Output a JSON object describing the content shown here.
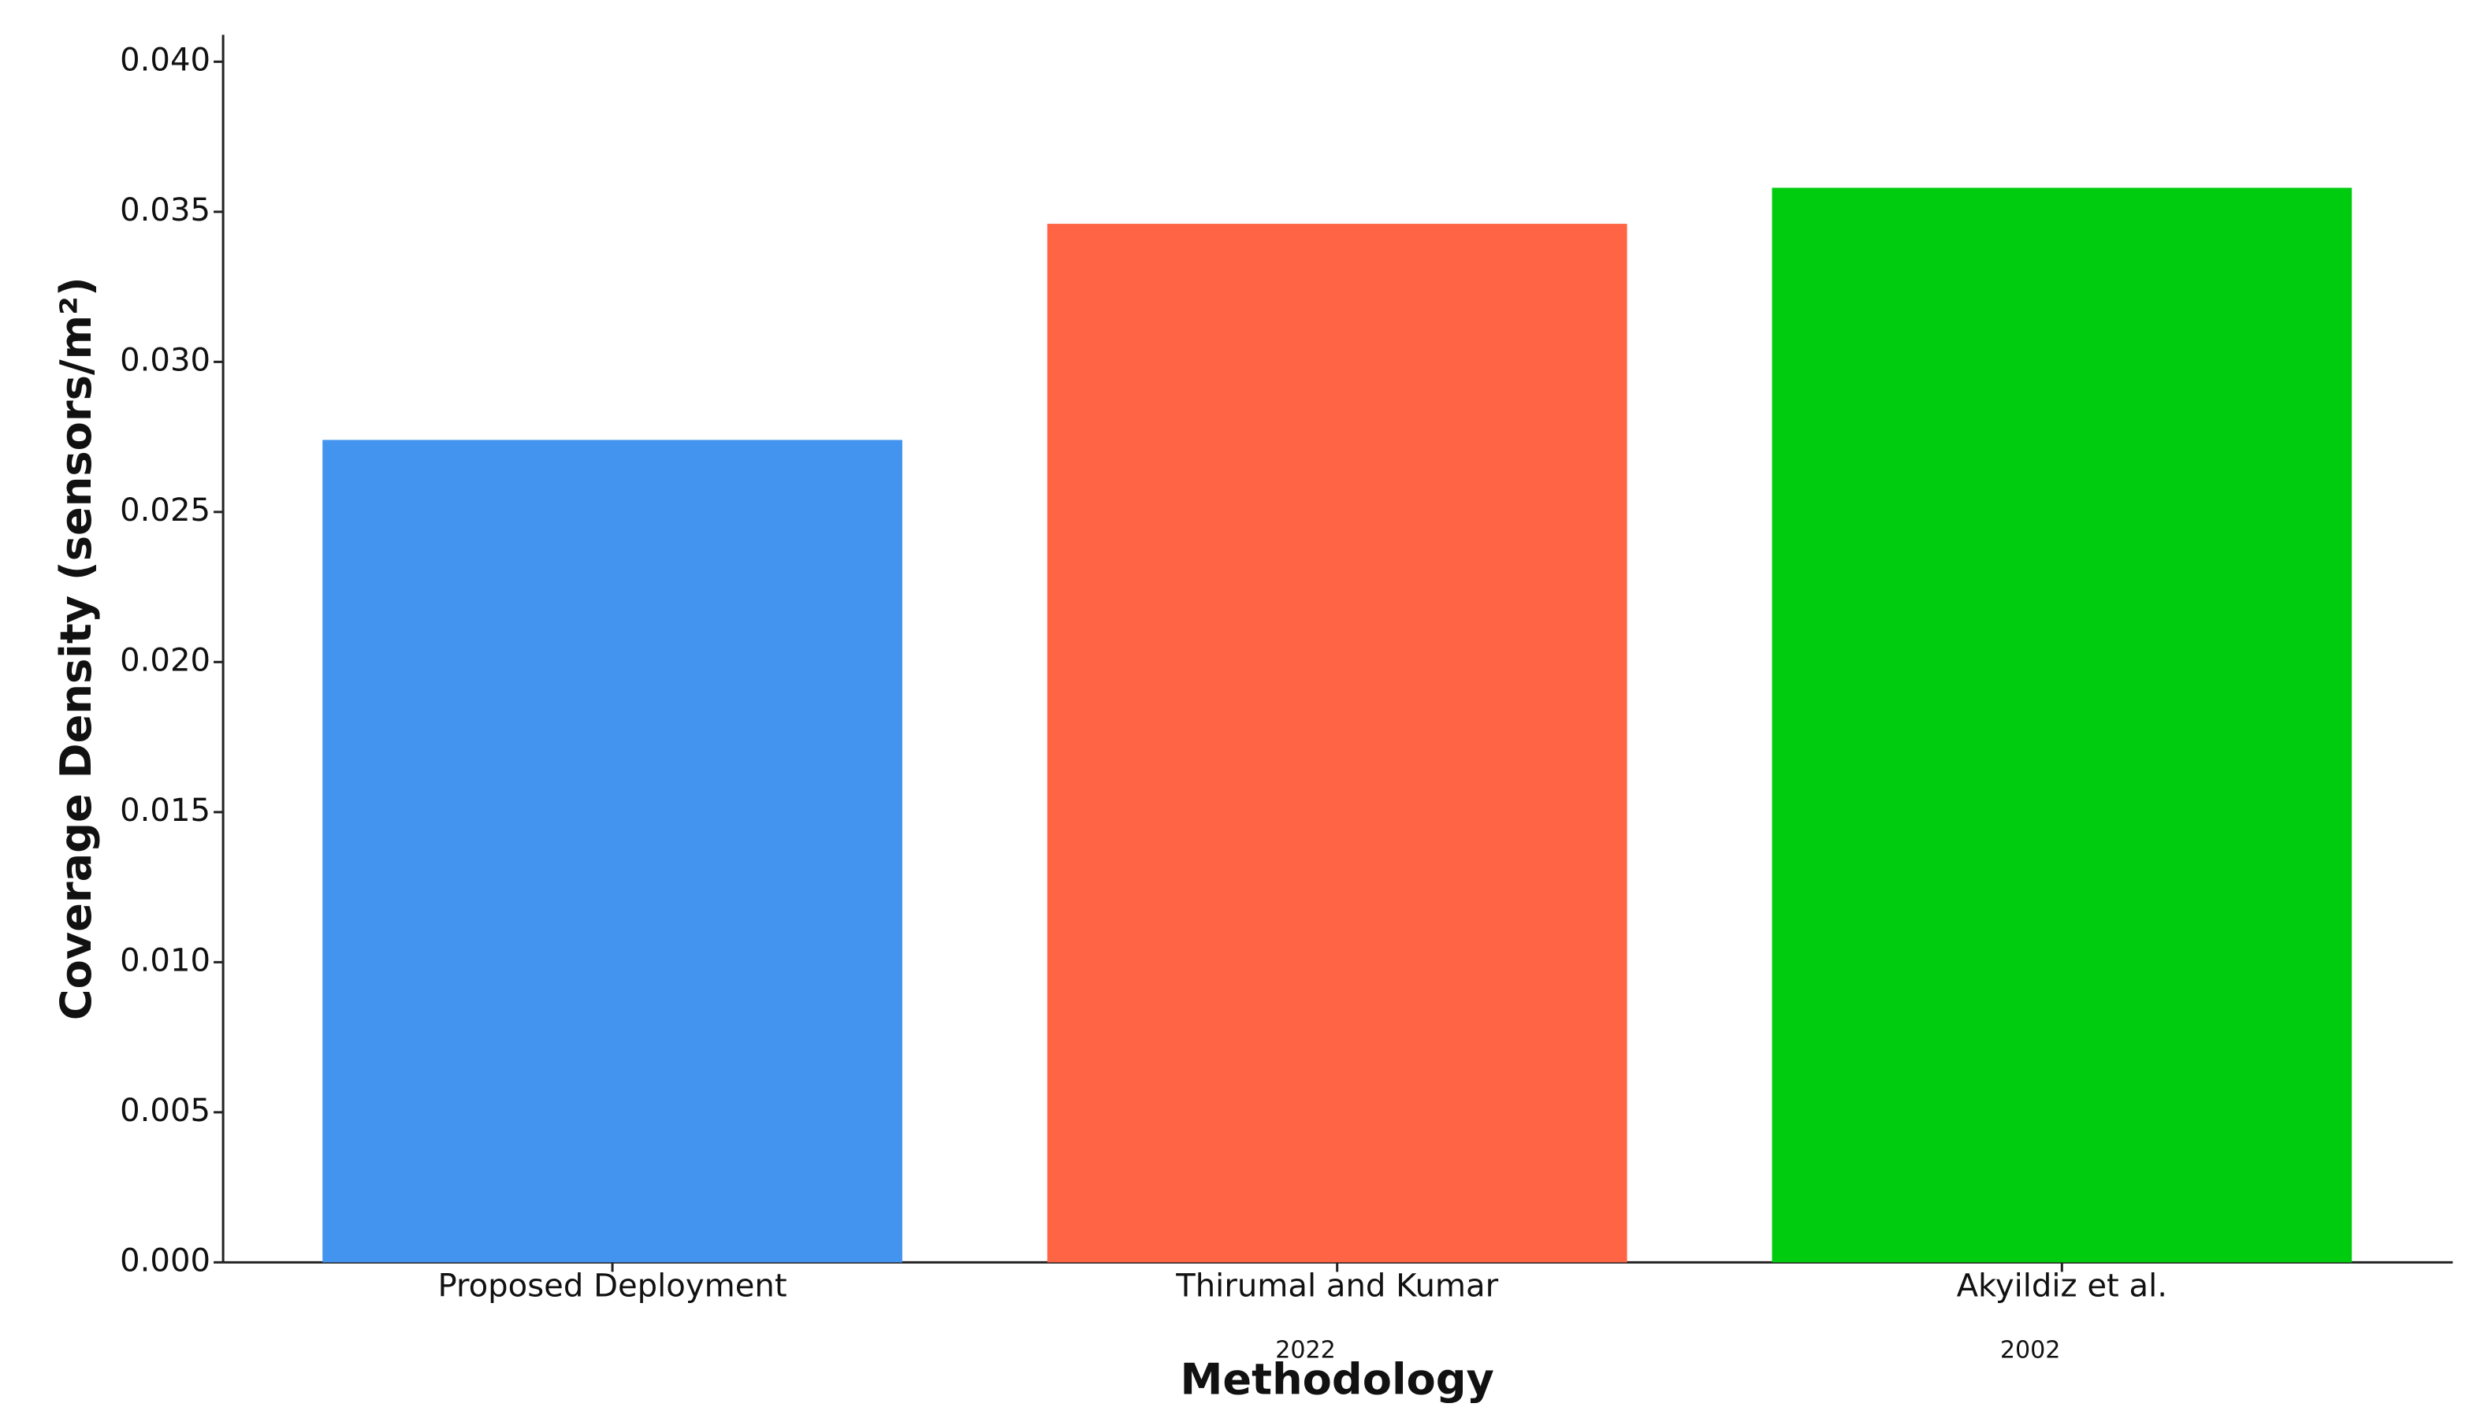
{
  "chart_data": {
    "type": "bar",
    "x_label": "Methodology",
    "y_label": "Coverage Density (sensors/m²)",
    "categories": [
      "Proposed Deployment",
      "Thirumal and Kumar",
      "Akyildiz et al."
    ],
    "values": [
      0.0274,
      0.0346,
      0.0358
    ],
    "colors": [
      "#4394ef",
      "#ff6445",
      "#00cc0f"
    ],
    "annotations": [
      "2022",
      "2002"
    ],
    "ylim": [
      0,
      0.04
    ],
    "yticks": [
      {
        "value": 0,
        "label": "0.000"
      },
      0.005,
      {
        "value": 0.01,
        "label": "0.010"
      },
      0.015,
      {
        "value": 0.02,
        "label": "0.020"
      },
      0.025,
      {
        "value": 0.03,
        "label": "0.030"
      },
      0.035,
      {
        "value": 0.04,
        "label": "0.040"
      }
    ],
    "grid": false
  }
}
